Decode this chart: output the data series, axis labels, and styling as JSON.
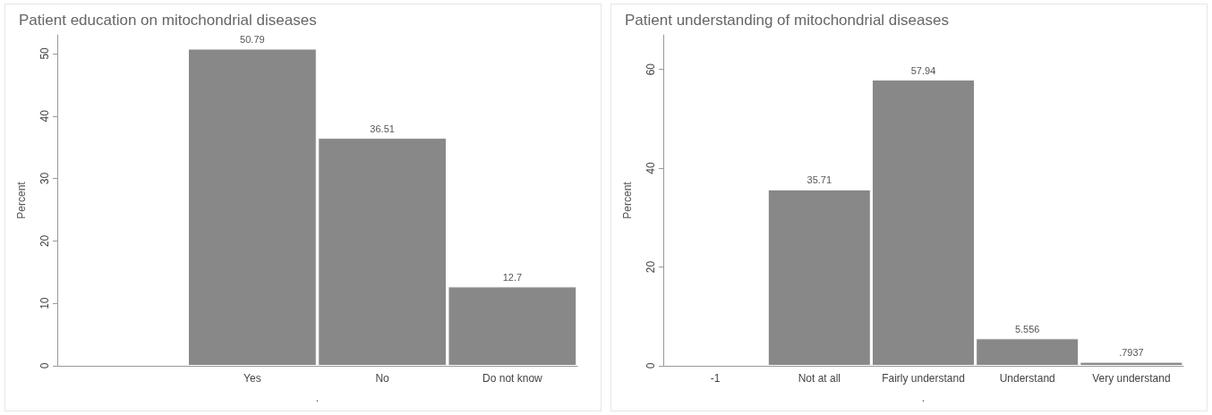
{
  "chart_data": [
    {
      "type": "bar",
      "title": "Patient education on mitochondrial diseases",
      "xlabel": ".",
      "ylabel": "Percent",
      "categories": [
        null,
        "Yes",
        "No",
        "Do not know"
      ],
      "values": [
        null,
        50.79,
        36.51,
        12.7
      ],
      "value_labels": [
        null,
        "50.79",
        "36.51",
        "12.7"
      ],
      "color": "#888888",
      "ylim": [
        0,
        53
      ],
      "yticks": [
        0,
        10,
        20,
        30,
        40,
        50
      ],
      "grid": false
    },
    {
      "type": "bar",
      "title": "Patient understanding of mitochondrial diseases",
      "xlabel": ".",
      "ylabel": "Percent",
      "categories": [
        "-1",
        "Not at all",
        "Fairly understand",
        "Understand",
        "Very understand"
      ],
      "values": [
        null,
        35.71,
        57.94,
        5.556,
        0.7937
      ],
      "value_labels": [
        null,
        "35.71",
        "57.94",
        "5.556",
        ".7937"
      ],
      "color": "#888888",
      "ylim": [
        0,
        67
      ],
      "yticks": [
        0,
        20,
        40,
        60
      ],
      "grid": false
    }
  ]
}
